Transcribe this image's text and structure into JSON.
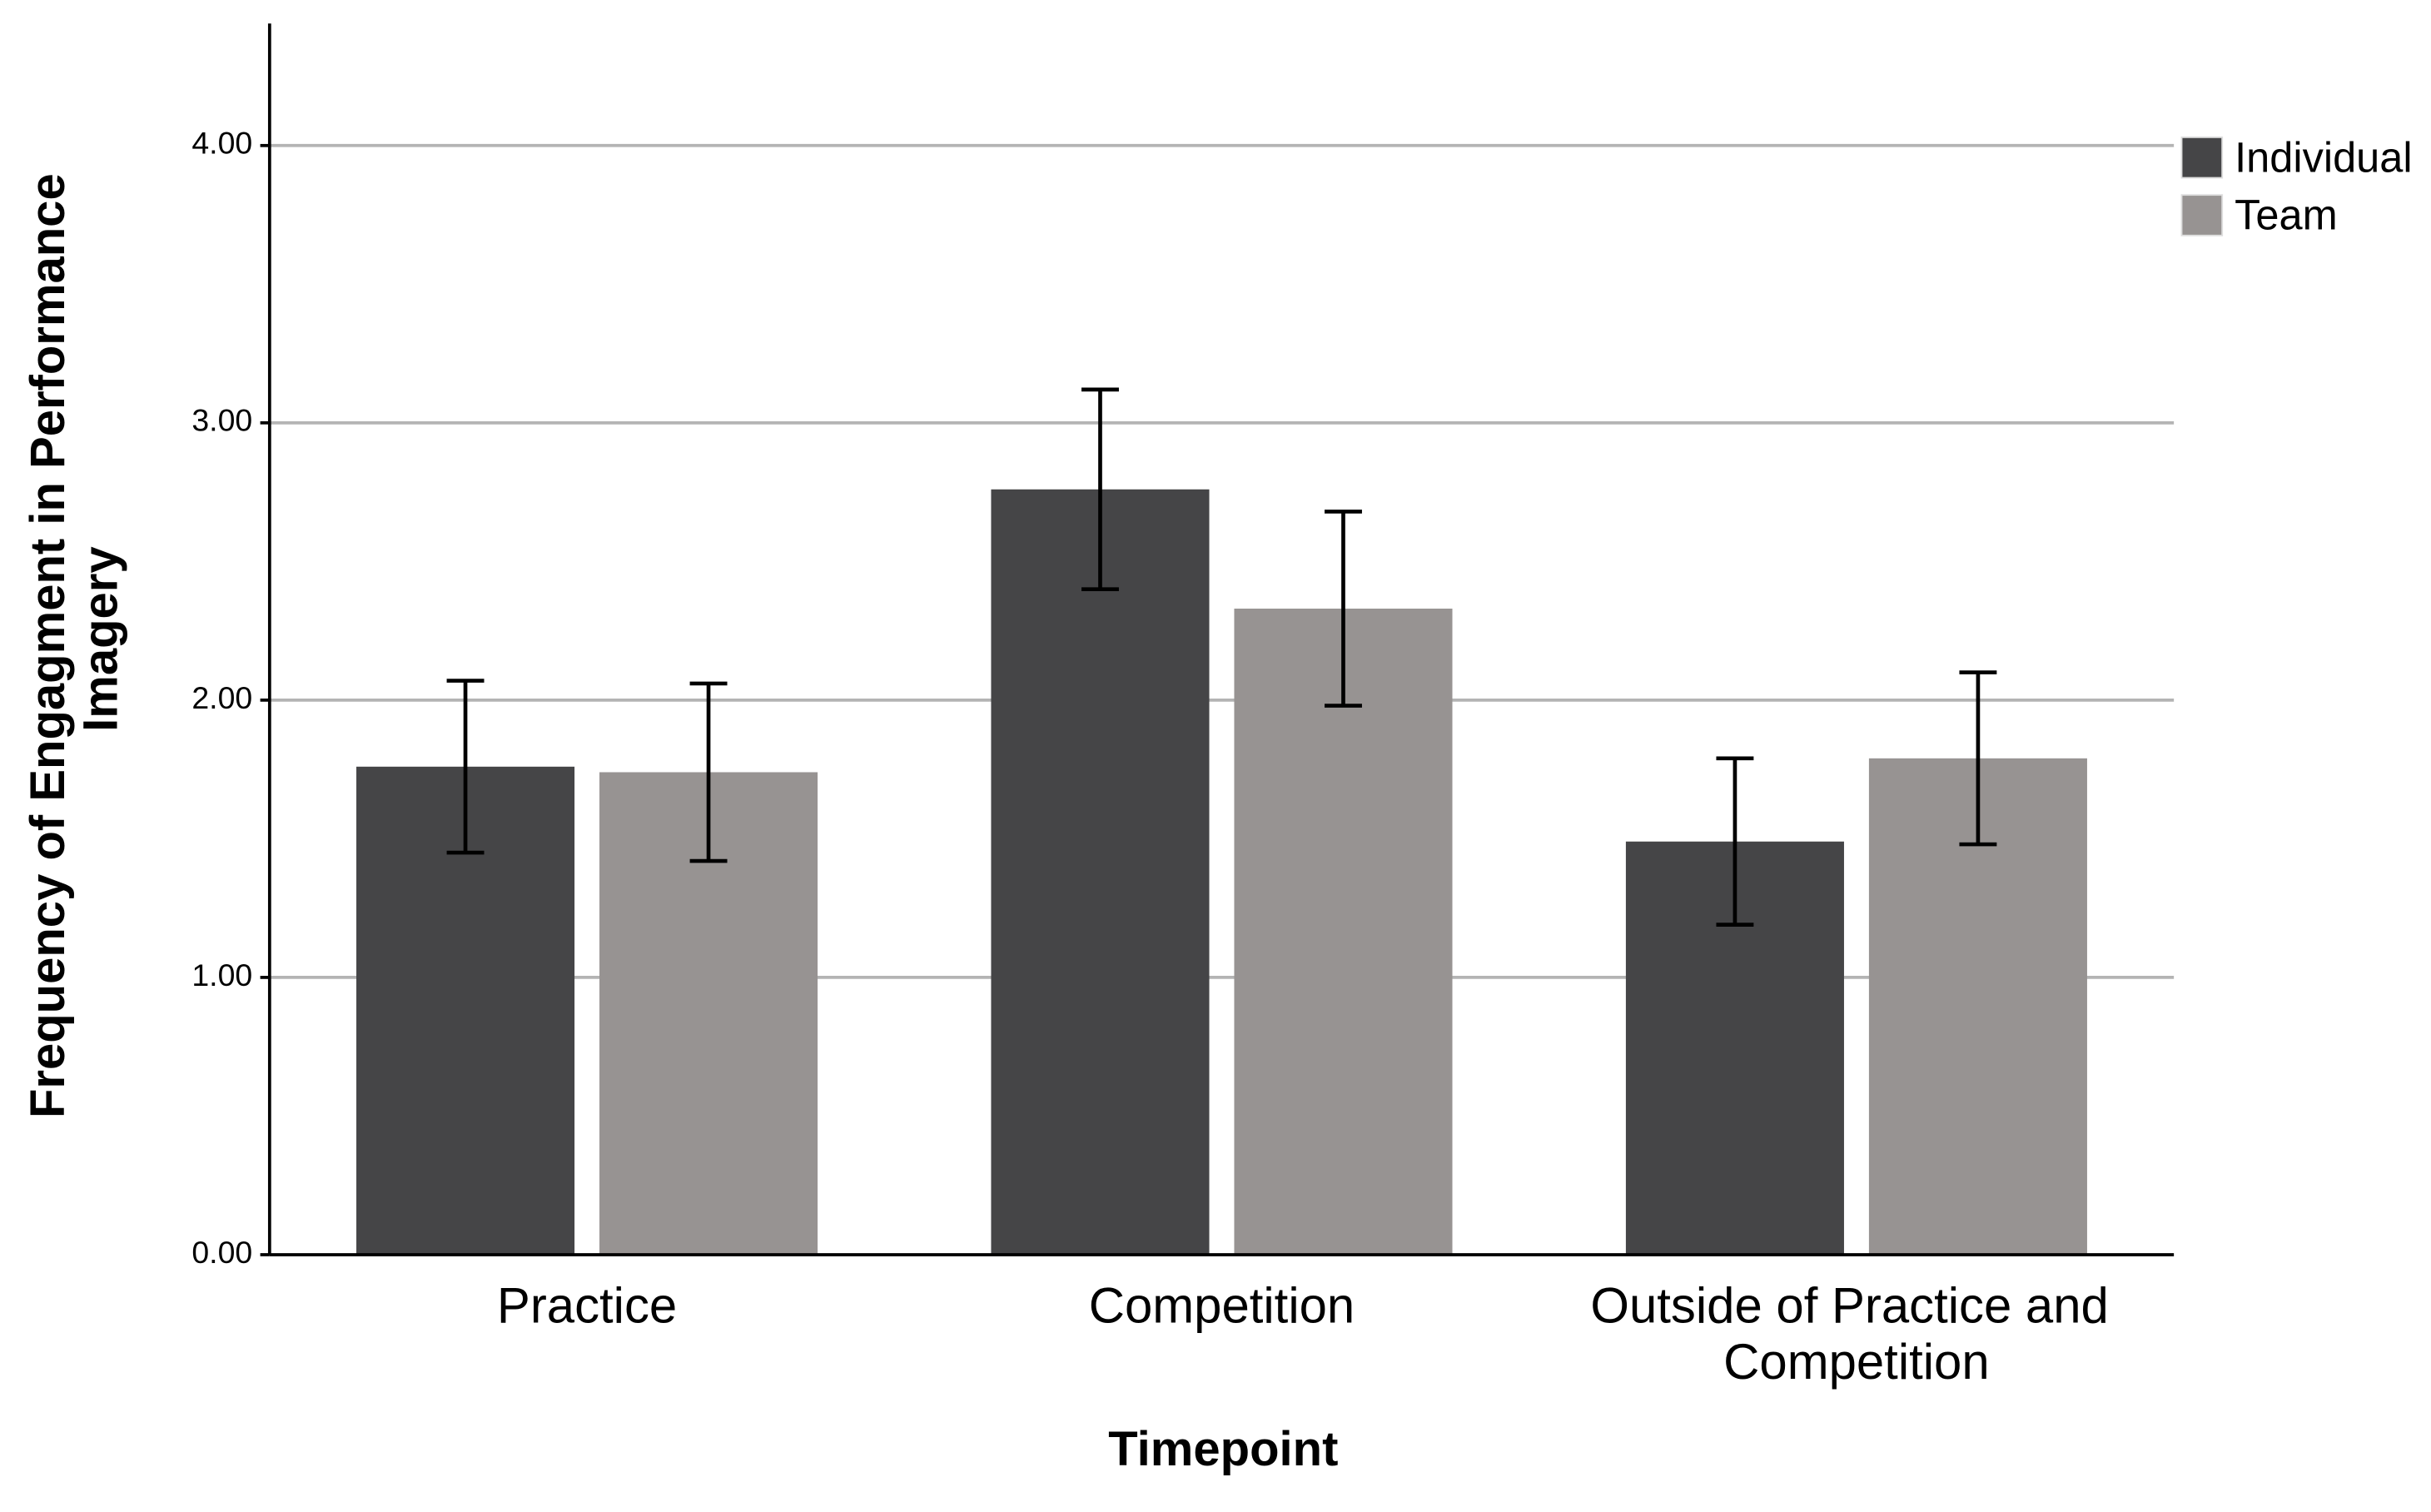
{
  "chart_data": {
    "type": "bar",
    "x_label": "Timepoint",
    "y_label": "Frequency of Engagment in Performance Imagery",
    "categories": [
      "Practice",
      "Competition",
      "Outside of Practice and Competition"
    ],
    "series": [
      {
        "name": "Individual",
        "color": "#454547",
        "values": [
          1.76,
          2.76,
          1.49
        ],
        "errors": [
          0.31,
          0.36,
          0.3
        ]
      },
      {
        "name": "Team",
        "color": "#979392",
        "values": [
          1.74,
          2.33,
          1.79
        ],
        "errors": [
          0.32,
          0.35,
          0.31
        ]
      }
    ],
    "ylim": [
      0,
      4.44
    ],
    "yticks": [
      {
        "value": 0,
        "label": "0.00"
      },
      {
        "value": 1,
        "label": "1.00"
      },
      {
        "value": 2,
        "label": "2.00"
      },
      {
        "value": 3,
        "label": "3.00"
      },
      {
        "value": 4,
        "label": "4.00"
      }
    ],
    "grid": true,
    "legend": "right"
  }
}
